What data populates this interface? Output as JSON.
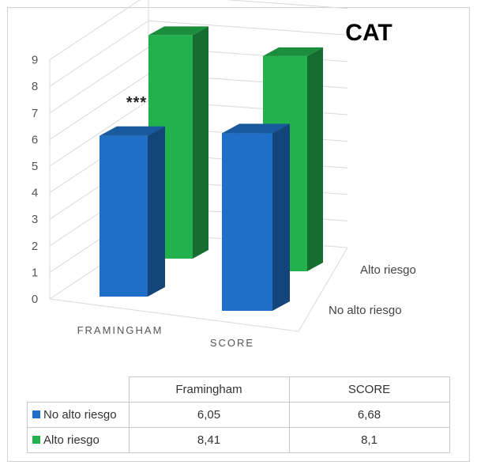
{
  "chart_data": {
    "type": "bar",
    "title": "CAT",
    "annotation": "***",
    "categories": [
      "FRAMINGHAM",
      "SCORE"
    ],
    "series": [
      {
        "name": "No alto riesgo",
        "values": [
          6.05,
          6.68
        ],
        "color": "#1f6fc6"
      },
      {
        "name": "Alto riesgo",
        "values": [
          8.41,
          8.1
        ],
        "color": "#22b14c"
      }
    ],
    "yticks": [
      "0",
      "1",
      "2",
      "3",
      "4",
      "5",
      "6",
      "7",
      "8",
      "9"
    ],
    "ylim": [
      0,
      9
    ],
    "grid": true,
    "three_d": true,
    "table": {
      "columns": [
        "Framingham",
        "SCORE"
      ],
      "rows": [
        {
          "label": "No alto riesgo",
          "values": [
            "6,05",
            "6,68"
          ],
          "color": "#1f6fc6"
        },
        {
          "label": "Alto riesgo",
          "values": [
            "8,41",
            "8,1"
          ],
          "color": "#22b14c"
        }
      ]
    }
  }
}
